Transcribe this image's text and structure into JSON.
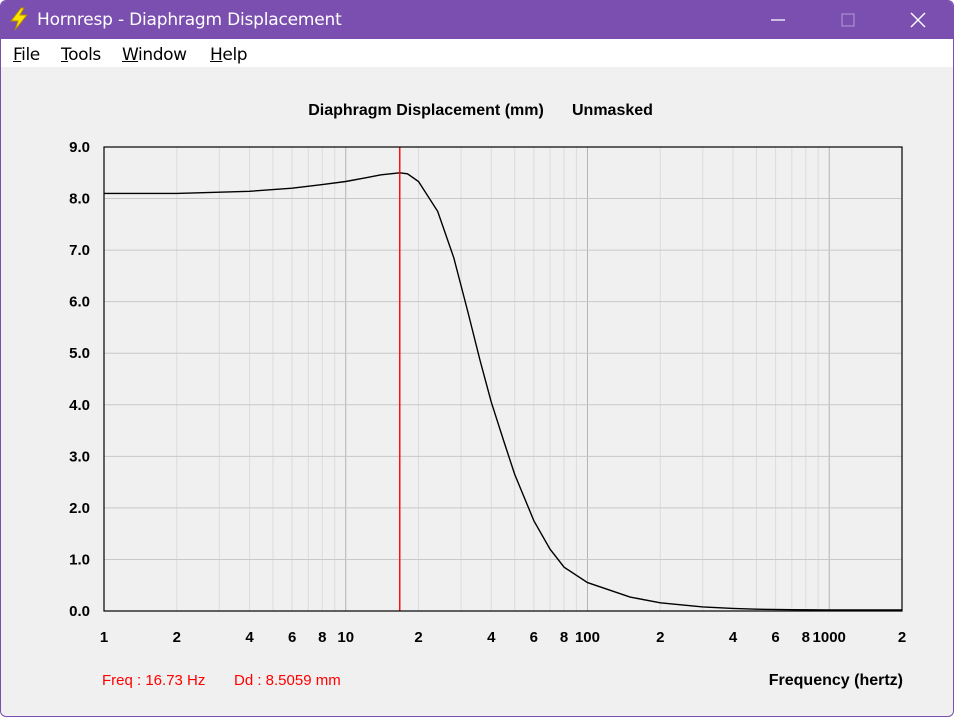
{
  "window": {
    "title": "Hornresp - Diaphragm Displacement",
    "icon": "lightning-bolt-icon",
    "controls": [
      "minimize-icon",
      "maximize-icon",
      "close-icon"
    ]
  },
  "menu": {
    "items": [
      "File",
      "Tools",
      "Window",
      "Help"
    ]
  },
  "colors": {
    "titlebar": "#7a4fb0",
    "marker": "#ff0000",
    "curve": "#000000",
    "grid": "#c8c8c8",
    "readout": "#ff0000"
  },
  "readout": {
    "freq": "Freq : 16.73 Hz",
    "dd": "Dd : 8.5059 mm"
  },
  "chart_data": {
    "type": "line",
    "title": "Diaphragm Displacement (mm)",
    "subtitle": "Unmasked",
    "xlabel": "Frequency (hertz)",
    "ylabel": "",
    "x_scale": "log",
    "xlim": [
      1,
      2000
    ],
    "ylim": [
      0,
      9
    ],
    "grid": true,
    "yticks": [
      "0.0",
      "1.0",
      "2.0",
      "3.0",
      "4.0",
      "5.0",
      "6.0",
      "7.0",
      "8.0",
      "9.0"
    ],
    "xticks": [
      {
        "value": 1,
        "label": "1"
      },
      {
        "value": 2,
        "label": "2"
      },
      {
        "value": 4,
        "label": "4"
      },
      {
        "value": 6,
        "label": "6"
      },
      {
        "value": 8,
        "label": "8"
      },
      {
        "value": 10,
        "label": "10"
      },
      {
        "value": 20,
        "label": "2"
      },
      {
        "value": 40,
        "label": "4"
      },
      {
        "value": 60,
        "label": "6"
      },
      {
        "value": 80,
        "label": "8"
      },
      {
        "value": 100,
        "label": "100"
      },
      {
        "value": 200,
        "label": "2"
      },
      {
        "value": 400,
        "label": "4"
      },
      {
        "value": 600,
        "label": "6"
      },
      {
        "value": 800,
        "label": "8"
      },
      {
        "value": 1000,
        "label": "1000"
      },
      {
        "value": 2000,
        "label": "2"
      }
    ],
    "marker_x": 16.73,
    "series": [
      {
        "x": [
          1,
          2,
          4,
          6,
          8,
          10,
          12,
          14,
          16.73,
          18,
          20,
          24,
          28,
          32,
          36,
          40,
          45,
          50,
          60,
          70,
          80,
          100,
          150,
          200,
          300,
          400,
          500,
          700,
          1000,
          2000
        ],
        "y": [
          8.1,
          8.1,
          8.14,
          8.2,
          8.27,
          8.33,
          8.4,
          8.46,
          8.5,
          8.48,
          8.33,
          7.75,
          6.85,
          5.8,
          4.85,
          4.05,
          3.3,
          2.65,
          1.75,
          1.2,
          0.85,
          0.55,
          0.27,
          0.16,
          0.08,
          0.05,
          0.035,
          0.025,
          0.02,
          0.02
        ]
      }
    ]
  }
}
